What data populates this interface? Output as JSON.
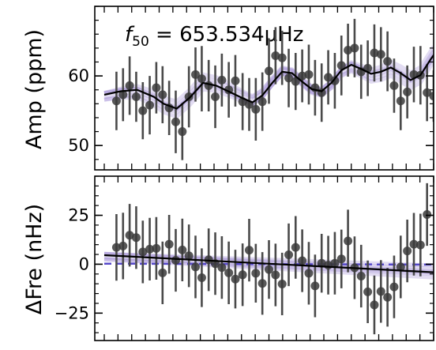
{
  "chart_data": [
    {
      "type": "scatter",
      "annotation": {
        "prefix": "f",
        "subscript": "50",
        "suffix": " = 653.534μHz"
      },
      "ylabel": "Amp (ppm)",
      "ylim": [
        46.5,
        70
      ],
      "xlim": [
        0,
        1
      ],
      "yticks": [
        50,
        60
      ],
      "points": [
        {
          "x": 0.037,
          "y": 56.4,
          "err": 4.2
        },
        {
          "x": 0.057,
          "y": 57.3,
          "err": 3.8
        },
        {
          "x": 0.077,
          "y": 58.6,
          "err": 4.2
        },
        {
          "x": 0.097,
          "y": 57.0,
          "err": 3.6
        },
        {
          "x": 0.117,
          "y": 55.0,
          "err": 4.1
        },
        {
          "x": 0.138,
          "y": 55.8,
          "err": 4.2
        },
        {
          "x": 0.158,
          "y": 58.3,
          "err": 3.7
        },
        {
          "x": 0.177,
          "y": 57.3,
          "err": 4.1
        },
        {
          "x": 0.197,
          "y": 55.4,
          "err": 3.9
        },
        {
          "x": 0.217,
          "y": 53.4,
          "err": 4.5
        },
        {
          "x": 0.237,
          "y": 52.0,
          "err": 4.1
        },
        {
          "x": 0.257,
          "y": 57.0,
          "err": 4.4
        },
        {
          "x": 0.277,
          "y": 60.2,
          "err": 3.9
        },
        {
          "x": 0.296,
          "y": 59.6,
          "err": 4.7
        },
        {
          "x": 0.317,
          "y": 58.6,
          "err": 3.7
        },
        {
          "x": 0.337,
          "y": 57.0,
          "err": 4.5
        },
        {
          "x": 0.357,
          "y": 59.4,
          "err": 3.8
        },
        {
          "x": 0.378,
          "y": 58.0,
          "err": 4.0
        },
        {
          "x": 0.398,
          "y": 59.3,
          "err": 3.7
        },
        {
          "x": 0.42,
          "y": 56.3,
          "err": 4.1
        },
        {
          "x": 0.44,
          "y": 55.9,
          "err": 3.8
        },
        {
          "x": 0.46,
          "y": 55.2,
          "err": 4.5
        },
        {
          "x": 0.48,
          "y": 56.3,
          "err": 4.2
        },
        {
          "x": 0.5,
          "y": 60.7,
          "err": 4.7
        },
        {
          "x": 0.52,
          "y": 62.9,
          "err": 4.1
        },
        {
          "x": 0.54,
          "y": 62.6,
          "err": 3.9
        },
        {
          "x": 0.56,
          "y": 59.7,
          "err": 4.2
        },
        {
          "x": 0.581,
          "y": 59.2,
          "err": 4.1
        },
        {
          "x": 0.601,
          "y": 60.0,
          "err": 3.8
        },
        {
          "x": 0.621,
          "y": 60.2,
          "err": 4.3
        },
        {
          "x": 0.64,
          "y": 58.3,
          "err": 4.0
        },
        {
          "x": 0.66,
          "y": 57.6,
          "err": 4.2
        },
        {
          "x": 0.68,
          "y": 59.8,
          "err": 3.9
        },
        {
          "x": 0.7,
          "y": 59.3,
          "err": 4.0
        },
        {
          "x": 0.72,
          "y": 61.5,
          "err": 4.3
        },
        {
          "x": 0.74,
          "y": 63.7,
          "err": 3.8
        },
        {
          "x": 0.76,
          "y": 64.0,
          "err": 4.2
        },
        {
          "x": 0.78,
          "y": 60.6,
          "err": 3.9
        },
        {
          "x": 0.8,
          "y": 61.1,
          "err": 4.0
        },
        {
          "x": 0.82,
          "y": 63.3,
          "err": 4.1
        },
        {
          "x": 0.84,
          "y": 63.1,
          "err": 3.9
        },
        {
          "x": 0.86,
          "y": 62.1,
          "err": 4.3
        },
        {
          "x": 0.88,
          "y": 58.6,
          "err": 3.9
        },
        {
          "x": 0.9,
          "y": 56.4,
          "err": 4.2
        },
        {
          "x": 0.92,
          "y": 57.7,
          "err": 3.8
        },
        {
          "x": 0.94,
          "y": 60.2,
          "err": 4.0
        },
        {
          "x": 0.96,
          "y": 60.1,
          "err": 4.2
        },
        {
          "x": 0.98,
          "y": 57.6,
          "err": 4.1
        },
        {
          "x": 1.0,
          "y": 57.1,
          "err": 3.7
        }
      ],
      "model": [
        [
          0,
          57.3
        ],
        [
          0.05,
          57.8
        ],
        [
          0.1,
          58.0
        ],
        [
          0.15,
          57.0
        ],
        [
          0.18,
          56.0
        ],
        [
          0.22,
          55.3
        ],
        [
          0.26,
          56.9
        ],
        [
          0.3,
          59.0
        ],
        [
          0.34,
          58.6
        ],
        [
          0.38,
          57.7
        ],
        [
          0.42,
          56.8
        ],
        [
          0.45,
          56.2
        ],
        [
          0.48,
          57.2
        ],
        [
          0.51,
          59.0
        ],
        [
          0.54,
          60.6
        ],
        [
          0.57,
          60.4
        ],
        [
          0.6,
          59.2
        ],
        [
          0.63,
          58.1
        ],
        [
          0.66,
          57.8
        ],
        [
          0.69,
          59.0
        ],
        [
          0.72,
          60.8
        ],
        [
          0.75,
          61.6
        ],
        [
          0.78,
          61.0
        ],
        [
          0.81,
          60.3
        ],
        [
          0.84,
          60.6
        ],
        [
          0.87,
          61.2
        ],
        [
          0.9,
          60.4
        ],
        [
          0.93,
          59.4
        ],
        [
          0.96,
          60.1
        ],
        [
          0.99,
          62.3
        ],
        [
          1.0,
          63.0
        ]
      ],
      "colors": {
        "points": "#3a3a3a",
        "model": "#000000",
        "band": "#7b5ec4"
      }
    },
    {
      "type": "scatter",
      "ylabel": "ΔFre (nHz)",
      "ylim": [
        -39,
        45
      ],
      "xlim": [
        0,
        1
      ],
      "yticks": [
        25,
        0,
        -25
      ],
      "points": [
        {
          "x": 0.037,
          "y": 8.6,
          "err": 17
        },
        {
          "x": 0.057,
          "y": 9.3,
          "err": 17
        },
        {
          "x": 0.077,
          "y": 14.8,
          "err": 16
        },
        {
          "x": 0.097,
          "y": 13.6,
          "err": 16
        },
        {
          "x": 0.117,
          "y": 6.3,
          "err": 16
        },
        {
          "x": 0.138,
          "y": 7.7,
          "err": 16
        },
        {
          "x": 0.158,
          "y": 8.1,
          "err": 16
        },
        {
          "x": 0.177,
          "y": -4.4,
          "err": 16
        },
        {
          "x": 0.197,
          "y": 10.2,
          "err": 15
        },
        {
          "x": 0.217,
          "y": 2.0,
          "err": 16
        },
        {
          "x": 0.237,
          "y": 7.3,
          "err": 16
        },
        {
          "x": 0.257,
          "y": 4.3,
          "err": 16
        },
        {
          "x": 0.277,
          "y": -1.4,
          "err": 16
        },
        {
          "x": 0.296,
          "y": -6.9,
          "err": 15
        },
        {
          "x": 0.317,
          "y": 2.3,
          "err": 16
        },
        {
          "x": 0.337,
          "y": 0.3,
          "err": 16
        },
        {
          "x": 0.357,
          "y": -1.7,
          "err": 16
        },
        {
          "x": 0.378,
          "y": -4.4,
          "err": 16
        },
        {
          "x": 0.398,
          "y": -7.6,
          "err": 15
        },
        {
          "x": 0.42,
          "y": -5.4,
          "err": 16
        },
        {
          "x": 0.44,
          "y": 7.2,
          "err": 16
        },
        {
          "x": 0.46,
          "y": -4.6,
          "err": 15
        },
        {
          "x": 0.48,
          "y": -9.8,
          "err": 16
        },
        {
          "x": 0.5,
          "y": -2.7,
          "err": 15
        },
        {
          "x": 0.52,
          "y": -5.5,
          "err": 16
        },
        {
          "x": 0.54,
          "y": -10.1,
          "err": 16
        },
        {
          "x": 0.56,
          "y": 4.8,
          "err": 16
        },
        {
          "x": 0.581,
          "y": 8.6,
          "err": 16
        },
        {
          "x": 0.601,
          "y": 1.8,
          "err": 16
        },
        {
          "x": 0.621,
          "y": -4.6,
          "err": 16
        },
        {
          "x": 0.64,
          "y": -11.1,
          "err": 16
        },
        {
          "x": 0.66,
          "y": 0.5,
          "err": 15
        },
        {
          "x": 0.68,
          "y": -0.5,
          "err": 15
        },
        {
          "x": 0.7,
          "y": 0.5,
          "err": 16
        },
        {
          "x": 0.72,
          "y": 2.7,
          "err": 15
        },
        {
          "x": 0.74,
          "y": 11.9,
          "err": 16
        },
        {
          "x": 0.76,
          "y": -1.8,
          "err": 16
        },
        {
          "x": 0.78,
          "y": -6.1,
          "err": 16
        },
        {
          "x": 0.8,
          "y": -14.1,
          "err": 16
        },
        {
          "x": 0.82,
          "y": -20.8,
          "err": 15
        },
        {
          "x": 0.84,
          "y": -13.9,
          "err": 16
        },
        {
          "x": 0.86,
          "y": -16.9,
          "err": 15
        },
        {
          "x": 0.88,
          "y": -11.6,
          "err": 16
        },
        {
          "x": 0.9,
          "y": -1.4,
          "err": 16
        },
        {
          "x": 0.92,
          "y": 6.8,
          "err": 16
        },
        {
          "x": 0.94,
          "y": 10.2,
          "err": 16
        },
        {
          "x": 0.96,
          "y": 9.8,
          "err": 16
        },
        {
          "x": 0.98,
          "y": 25.4,
          "err": 16
        }
      ],
      "model": [
        [
          0,
          4.6
        ],
        [
          1,
          -4.1
        ]
      ],
      "reference": [
        [
          0,
          0.3
        ],
        [
          1,
          -0.2
        ]
      ],
      "colors": {
        "points": "#3a3a3a",
        "model": "#000000",
        "band": "#7b5ec4",
        "reference": "#5548c9"
      }
    }
  ]
}
